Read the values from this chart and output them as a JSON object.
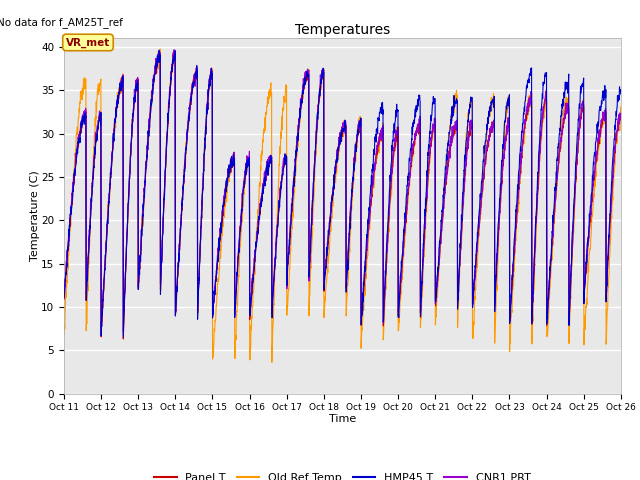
{
  "title": "Temperatures",
  "xlabel": "Time",
  "ylabel": "Temperature (C)",
  "ylim": [
    0,
    41
  ],
  "yticks": [
    0,
    5,
    10,
    15,
    20,
    25,
    30,
    35,
    40
  ],
  "x_tick_labels": [
    "Oct 11",
    "Oct 12",
    "Oct 13",
    "Oct 14",
    "Oct 15",
    "Oct 16",
    "Oct 17",
    "Oct 18",
    "Oct 19",
    "Oct 20",
    "Oct 21",
    "Oct 22",
    "Oct 23",
    "Oct 24",
    "Oct 25",
    "Oct 26"
  ],
  "no_data_text": "No data for f_AM25T_ref",
  "annotation_text": "VR_met",
  "bg_color": "#e8e8e8",
  "panel_t_color": "#cc0000",
  "old_ref_color": "#ff9900",
  "hmp45_color": "#0000cc",
  "cnr1_color": "#9900cc",
  "legend_labels": [
    "Panel T",
    "Old Ref Temp",
    "HMP45 T",
    "CNR1 PRT"
  ],
  "n_days": 15,
  "points_per_day": 144,
  "day_peaks": [
    32,
    36,
    39,
    37,
    27,
    27,
    37,
    31,
    30,
    31,
    31,
    31,
    34,
    33,
    32
  ],
  "day_lows": [
    11,
    7,
    12,
    9,
    9,
    9,
    13,
    12,
    8,
    9,
    10,
    10,
    8,
    8,
    11
  ],
  "orange_peaks": [
    36,
    36,
    39,
    37,
    27,
    35,
    37,
    31,
    30,
    31,
    34,
    34,
    34,
    34,
    32
  ],
  "orange_lows": [
    7,
    7,
    12,
    9,
    4,
    4,
    9,
    9,
    6,
    7,
    8,
    6,
    6,
    6,
    6
  ]
}
